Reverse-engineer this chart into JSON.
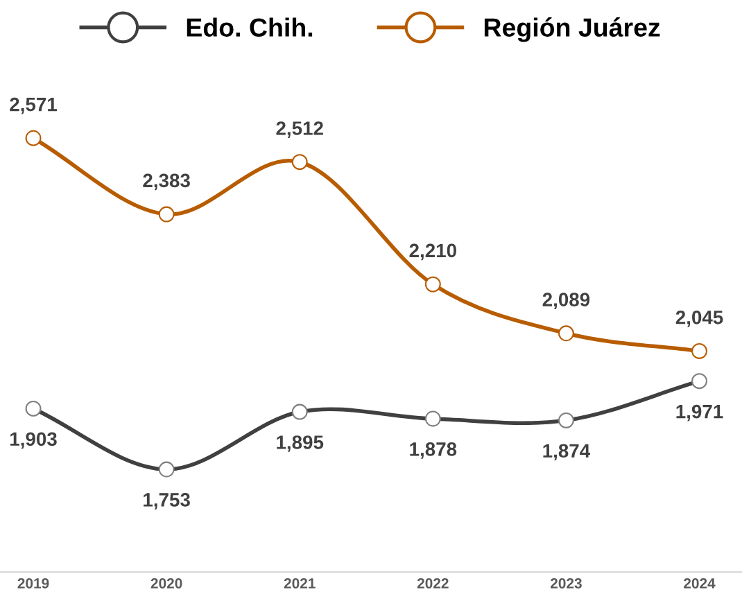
{
  "chart_data": {
    "type": "line",
    "categories": [
      "2019",
      "2020",
      "2021",
      "2022",
      "2023",
      "2024"
    ],
    "series": [
      {
        "name": "Edo. Chih.",
        "color": "#404040",
        "values": [
          1903,
          1753,
          1895,
          1878,
          1874,
          1971
        ],
        "value_labels": [
          "1,903",
          "1,753",
          "1,895",
          "1,878",
          "1,874",
          "1,971"
        ]
      },
      {
        "name": "Región Juárez",
        "color": "#b85c00",
        "values": [
          2571,
          2383,
          2512,
          2210,
          2089,
          2045
        ],
        "value_labels": [
          "2,571",
          "2,383",
          "2,512",
          "2,210",
          "2,089",
          "2,045"
        ]
      }
    ],
    "marker": "circle",
    "line_style": "solid",
    "legend": "top",
    "grid": false
  }
}
